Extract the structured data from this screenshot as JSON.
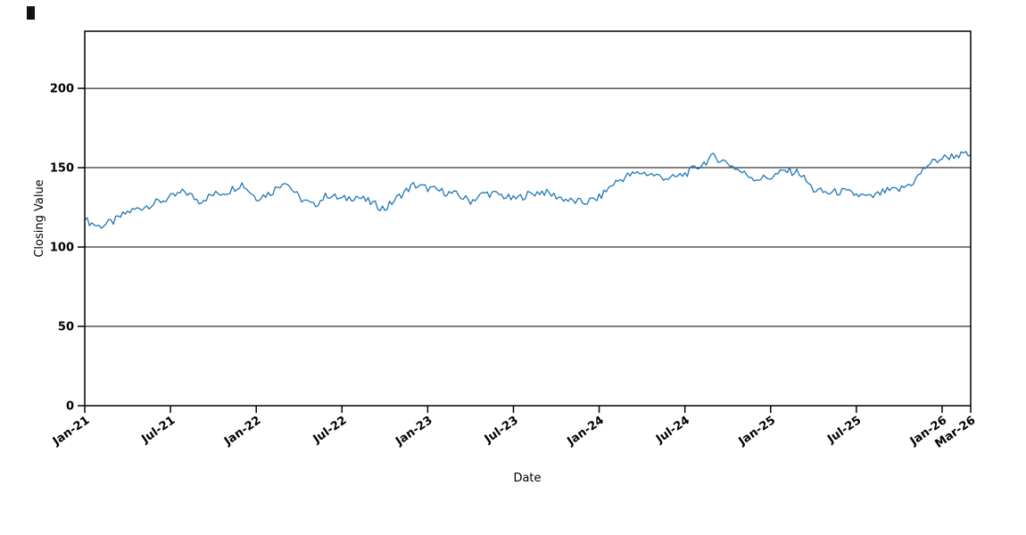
{
  "figure": {
    "background": "#ffffff"
  },
  "chart_data": {
    "type": "line",
    "title": "",
    "xlabel": "Date",
    "ylabel": "Closing Value",
    "legend": "none",
    "grid": "horizontal",
    "grid_color": "#000000",
    "axis_color": "#000000",
    "ylim": [
      0,
      236
    ],
    "yticks": [
      0,
      50,
      100,
      150,
      200
    ],
    "xlim_months": [
      0,
      62
    ],
    "xticks": [
      {
        "label": "Jan-21",
        "month_index": 0
      },
      {
        "label": "Jul-21",
        "month_index": 6
      },
      {
        "label": "Jan-22",
        "month_index": 12
      },
      {
        "label": "Jul-22",
        "month_index": 18
      },
      {
        "label": "Jan-23",
        "month_index": 24
      },
      {
        "label": "Jul-23",
        "month_index": 30
      },
      {
        "label": "Jan-24",
        "month_index": 36
      },
      {
        "label": "Jul-24",
        "month_index": 42
      },
      {
        "label": "Jan-25",
        "month_index": 48
      },
      {
        "label": "Jul-25",
        "month_index": 54
      },
      {
        "label": "Jan-26",
        "month_index": 60
      },
      {
        "label": "Mar-26",
        "month_index": 62
      }
    ],
    "series": [
      {
        "name": "Closing Value",
        "color": "#1f77b4",
        "x_start": "Jan-21",
        "x_step": "1 month",
        "values": [
          117,
          113,
          116,
          122,
          125,
          128,
          131,
          135,
          129,
          133,
          135,
          140,
          131,
          134,
          142,
          131,
          126,
          133,
          130,
          132,
          128,
          124,
          132,
          139,
          137,
          135,
          133,
          129,
          134,
          133,
          130,
          133,
          135,
          132,
          129,
          128,
          131,
          140,
          145,
          147,
          145,
          143,
          146,
          151,
          157,
          153,
          147,
          143,
          144,
          148,
          147,
          136,
          134,
          135,
          133,
          131,
          135,
          136,
          141,
          152,
          156,
          158,
          158
        ]
      }
    ]
  }
}
